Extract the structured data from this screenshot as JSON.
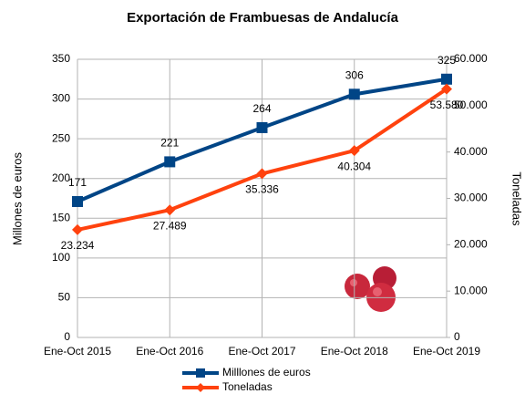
{
  "chart_data": {
    "type": "line",
    "title": "Exportación de Frambuesas de Andalucía",
    "y_label": "Millones de euros",
    "y2_label": "Toneladas",
    "categories": [
      "Ene-Oct 2015",
      "Ene-Oct 2016",
      "Ene-Oct 2017",
      "Ene-Oct 2018",
      "Ene-Oct 2019"
    ],
    "series": [
      {
        "name": "Milllones de euros",
        "color": "#004586",
        "values": [
          171,
          221,
          264,
          306,
          325
        ]
      },
      {
        "name": "Toneladas",
        "color": "#ff420e",
        "axis": "y2",
        "values": [
          23234,
          27489,
          35336,
          40304,
          53580
        ],
        "value_labels": [
          "23.234",
          "27.489",
          "35.336",
          "40.304",
          "53.580"
        ]
      }
    ],
    "ylim": [
      0,
      350
    ],
    "yticks": [
      0,
      50,
      100,
      150,
      200,
      250,
      300,
      350
    ],
    "y2lim": [
      0,
      60000
    ],
    "y2ticks": [
      0,
      {
        "value": 10000,
        "label": "10.000"
      },
      {
        "value": 20000,
        "label": "20.000"
      },
      {
        "value": 30000,
        "label": "30.000"
      },
      {
        "value": 40000,
        "label": "40.000"
      },
      {
        "value": 50000,
        "label": "50.000"
      },
      {
        "value": 60000,
        "label": "60.000"
      }
    ],
    "grid": true,
    "legend": "bottom"
  }
}
